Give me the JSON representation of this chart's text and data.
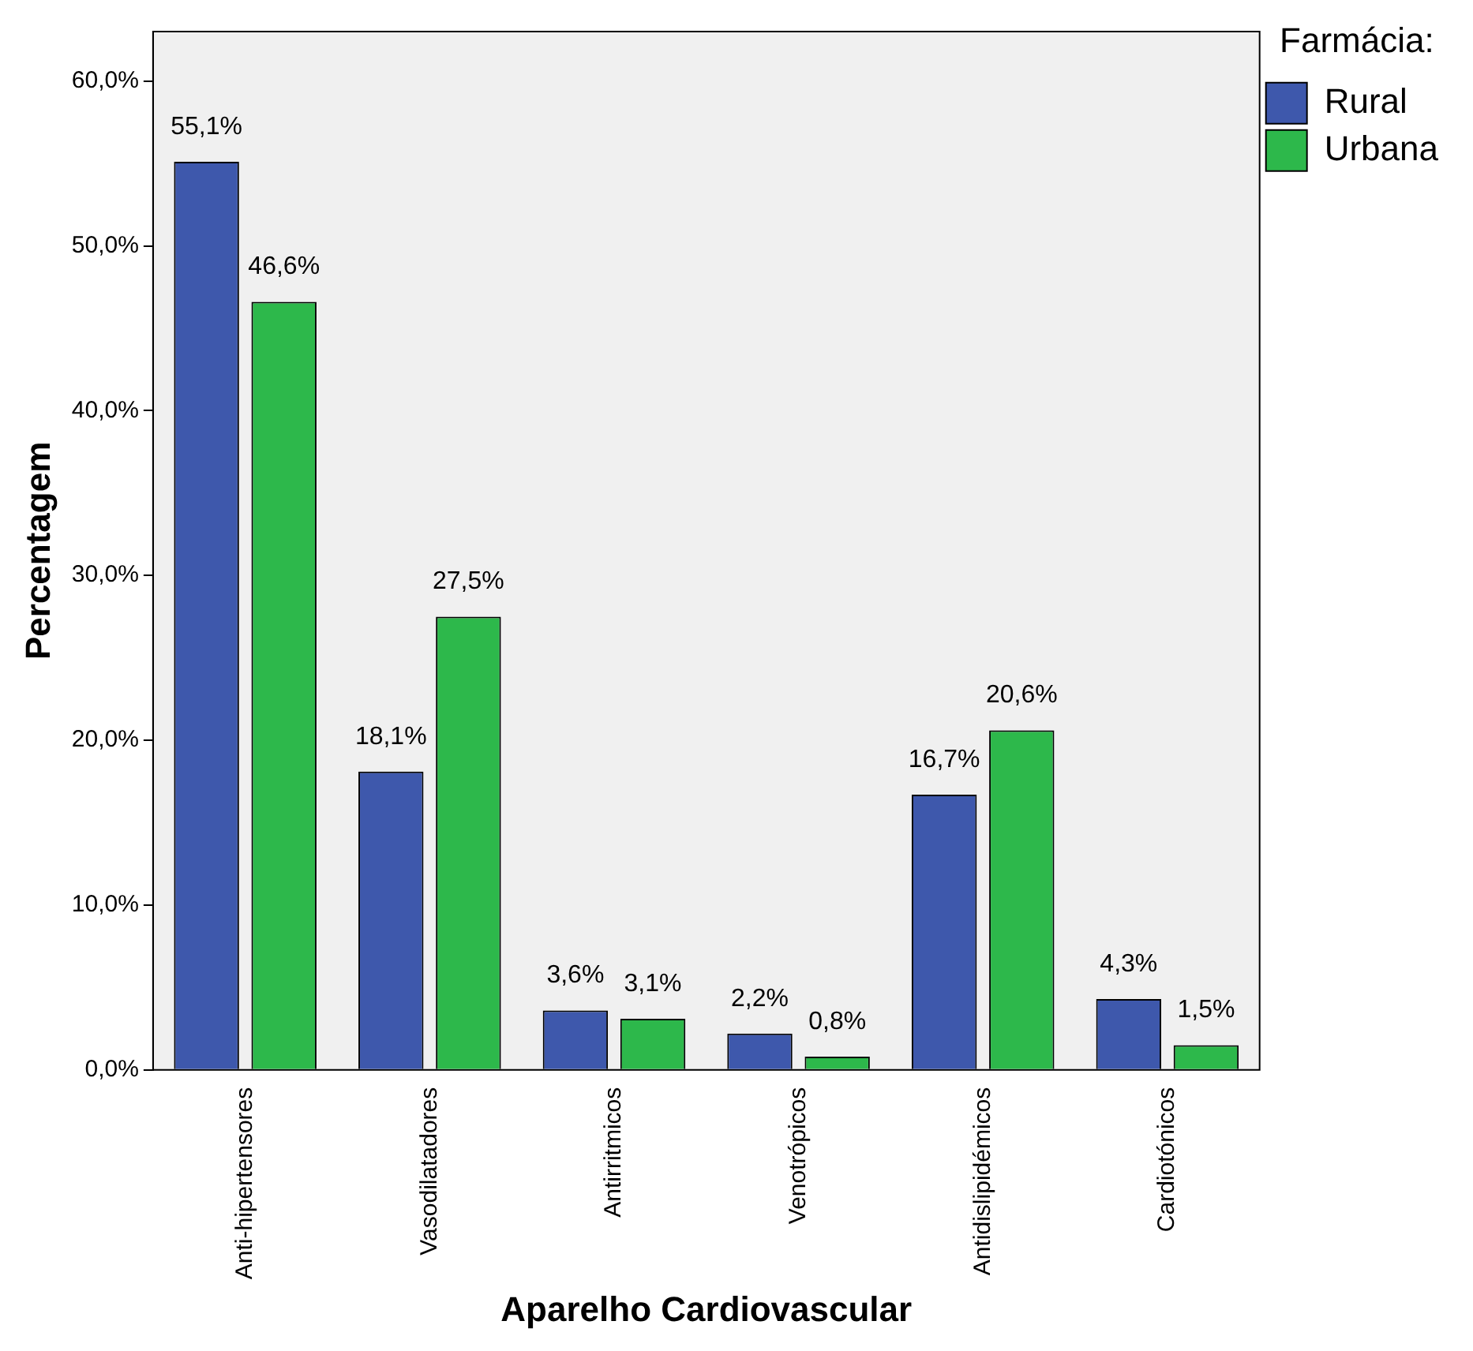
{
  "chart_data": {
    "type": "bar",
    "xlabel": "Aparelho Cardiovascular",
    "ylabel": "Percentagem",
    "legend_title": "Farmácia:",
    "categories": [
      "Anti-hipertensores",
      "Vasodilatadores",
      "Antirritmicos",
      "Venotrópicos",
      "Antidislipidémicos",
      "Cardiotónicos"
    ],
    "series": [
      {
        "name": "Rural",
        "color": "#3e58ac",
        "values": [
          55.1,
          18.1,
          3.6,
          2.2,
          16.7,
          4.3
        ],
        "value_labels": [
          "55,1%",
          "18,1%",
          "3,6%",
          "2,2%",
          "16,7%",
          "4,3%"
        ]
      },
      {
        "name": "Urbana",
        "color": "#2db84b",
        "values": [
          46.6,
          27.5,
          3.1,
          0.8,
          20.6,
          1.5
        ],
        "value_labels": [
          "46,6%",
          "27,5%",
          "3,1%",
          "0,8%",
          "20,6%",
          "1,5%"
        ]
      }
    ],
    "ylim": [
      0,
      63
    ],
    "yticks": [
      {
        "value": 0,
        "label": "0,0%"
      },
      {
        "value": 10,
        "label": "10,0%"
      },
      {
        "value": 20,
        "label": "20,0%"
      },
      {
        "value": 30,
        "label": "30,0%"
      },
      {
        "value": 40,
        "label": "40,0%"
      },
      {
        "value": 50,
        "label": "50,0%"
      },
      {
        "value": 60,
        "label": "60,0%"
      }
    ],
    "grid": false,
    "legend": "top right"
  }
}
